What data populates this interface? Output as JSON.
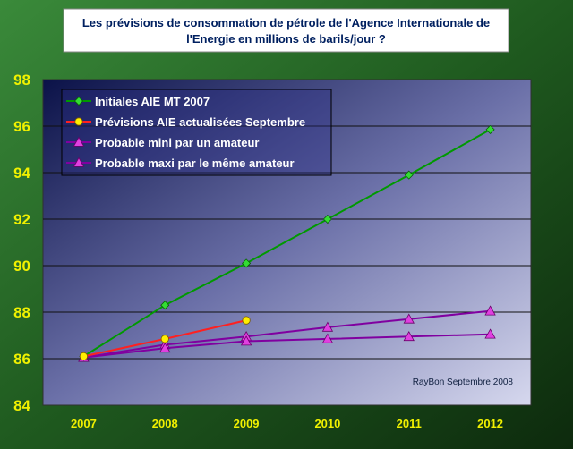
{
  "chart_data": {
    "type": "line",
    "title_line1": "Les prévisions de consommation de pétrole de l'Agence Internationale de",
    "title_line2": "l'Energie en millions de barils/jour ?",
    "xlabel": "",
    "ylabel": "",
    "categories": [
      "2007",
      "2008",
      "2009",
      "2010",
      "2011",
      "2012"
    ],
    "ylim": [
      84,
      98
    ],
    "yticks": [
      "84",
      "86",
      "88",
      "90",
      "92",
      "94",
      "96",
      "98"
    ],
    "grid": "horizontal major gridlines",
    "legend_position": "top-left",
    "annotation": "RayBon Septembre 2008",
    "series": [
      {
        "name": "Initiales AIE MT 2007",
        "color": "#009900",
        "marker": "diamond",
        "marker_color": "#33dd33",
        "values": [
          86.1,
          88.3,
          90.1,
          92.0,
          93.9,
          95.85
        ]
      },
      {
        "name": "Prévisions AIE actualisées Septembre",
        "color": "#ff2020",
        "marker": "circle",
        "marker_color": "#ffee00",
        "values": [
          86.1,
          86.85,
          87.65,
          null,
          null,
          null
        ]
      },
      {
        "name": "Probable mini par un amateur",
        "color": "#8000a0",
        "marker": "triangle",
        "marker_color": "#e040e0",
        "values": [
          86.05,
          86.45,
          86.75,
          86.85,
          86.95,
          87.05
        ]
      },
      {
        "name": "Probable maxi par le même amateur",
        "color": "#8000a0",
        "marker": "triangle",
        "marker_color": "#e040e0",
        "values": [
          86.05,
          86.6,
          86.95,
          87.35,
          87.7,
          88.05
        ]
      }
    ]
  }
}
